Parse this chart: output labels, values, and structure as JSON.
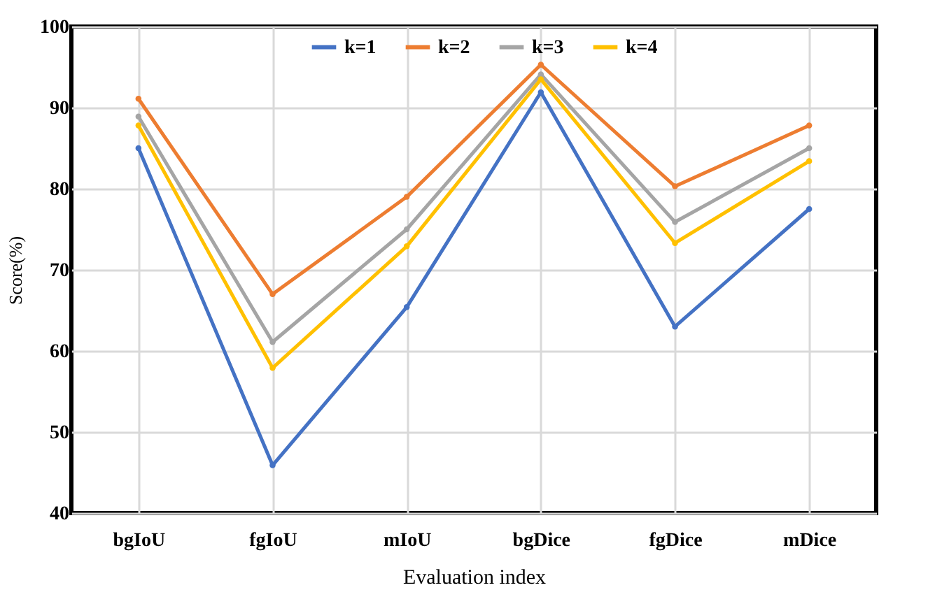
{
  "chart_data": {
    "type": "line",
    "xlabel": "Evaluation index",
    "ylabel": "Score(%)",
    "categories": [
      "bgIoU",
      "fgIoU",
      "mIoU",
      "bgDice",
      "fgDice",
      "mDice"
    ],
    "series": [
      {
        "name": "k=1",
        "color": "#4472c4",
        "values": [
          85.0,
          45.9,
          65.4,
          91.9,
          63.0,
          77.5
        ]
      },
      {
        "name": "k=2",
        "color": "#ed7d31",
        "values": [
          91.1,
          67.0,
          79.0,
          95.3,
          80.3,
          87.8
        ]
      },
      {
        "name": "k=3",
        "color": "#a5a5a5",
        "values": [
          88.9,
          61.1,
          75.0,
          94.1,
          75.9,
          85.0
        ]
      },
      {
        "name": "k=4",
        "color": "#ffc000",
        "values": [
          87.8,
          57.9,
          72.9,
          93.5,
          73.3,
          83.4
        ]
      }
    ],
    "ylim": [
      40,
      100
    ],
    "yticks": [
      40,
      50,
      60,
      70,
      80,
      90,
      100
    ],
    "grid": true,
    "legend": "top",
    "marker": "circle",
    "line_style": "solid"
  }
}
